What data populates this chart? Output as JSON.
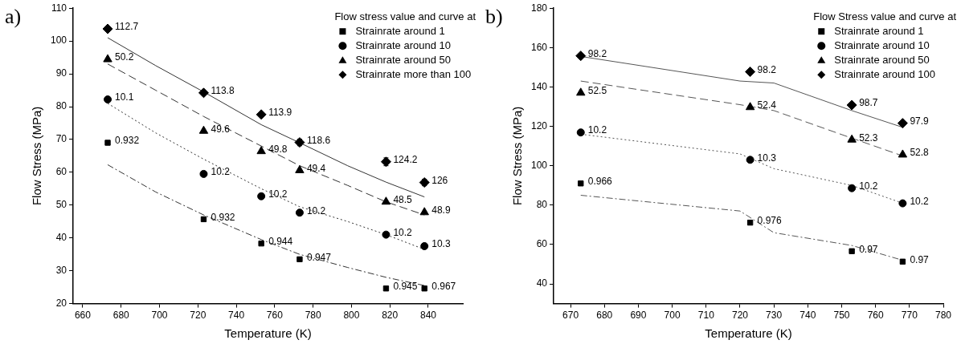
{
  "chart_data": [
    {
      "type": "scatter",
      "xlabel": "Temperature (K)",
      "ylabel": "Flow Stress (MPa)",
      "legend_title": "Flow stress value and curve at",
      "legend": "top right",
      "xlim": [
        655,
        858
      ],
      "xticks": [
        660,
        680,
        700,
        720,
        740,
        760,
        780,
        800,
        820,
        840
      ],
      "ylim": [
        20,
        110
      ],
      "yticks": [
        20,
        30,
        40,
        50,
        60,
        70,
        80,
        90,
        100,
        110
      ],
      "x": [
        673,
        723,
        753,
        773,
        818,
        838
      ],
      "annotations": [
        "a)",
        {
          "text": "0.932",
          "x": 673,
          "y": 69.0
        },
        {
          "text": "0.932",
          "x": 723,
          "y": 45.7
        },
        {
          "text": "0.944",
          "x": 753,
          "y": 38.3
        },
        {
          "text": "0.947",
          "x": 773,
          "y": 33.5
        },
        {
          "text": "0.945",
          "x": 818,
          "y": 24.6
        },
        {
          "text": "0.967",
          "x": 838,
          "y": 24.6
        },
        {
          "text": "10.1",
          "x": 673,
          "y": 82.2
        },
        {
          "text": "10.2",
          "x": 723,
          "y": 59.5
        },
        {
          "text": "10.2",
          "x": 753,
          "y": 52.7
        },
        {
          "text": "10.2",
          "x": 773,
          "y": 47.7
        },
        {
          "text": "10.2",
          "x": 818,
          "y": 41.0
        },
        {
          "text": "10.3",
          "x": 838,
          "y": 37.5
        },
        {
          "text": "50.2",
          "x": 673,
          "y": 94.4
        },
        {
          "text": "49.6",
          "x": 723,
          "y": 72.6
        },
        {
          "text": "49.8",
          "x": 753,
          "y": 66.4
        },
        {
          "text": "49.4",
          "x": 773,
          "y": 60.6
        },
        {
          "text": "48.5",
          "x": 818,
          "y": 51.0
        },
        {
          "text": "48.9",
          "x": 838,
          "y": 47.8
        },
        {
          "text": "112.7",
          "x": 673,
          "y": 103.7
        },
        {
          "text": "113.8",
          "x": 723,
          "y": 84.2
        },
        {
          "text": "113.9",
          "x": 753,
          "y": 77.6
        },
        {
          "text": "118.6",
          "x": 773,
          "y": 69.1
        },
        {
          "text": "124.2",
          "x": 818,
          "y": 63.2
        },
        {
          "text": "126",
          "x": 838,
          "y": 56.9
        }
      ],
      "series": [
        {
          "name": "Strainrate around 1",
          "color": "#000000",
          "marker": "square",
          "values": [
            69.0,
            45.7,
            38.3,
            33.5,
            24.6,
            24.6
          ]
        },
        {
          "name": "Strainrate around 10",
          "color": "#000000",
          "marker": "circle",
          "values": [
            82.2,
            59.5,
            52.7,
            47.7,
            41.0,
            37.5
          ]
        },
        {
          "name": "Strainrate around 50",
          "color": "#000000",
          "marker": "triangle",
          "values": [
            94.4,
            72.6,
            66.4,
            60.6,
            51.0,
            47.8
          ]
        },
        {
          "name": "Strainrate more than 100",
          "color": "#000000",
          "marker": "diamond",
          "values": [
            103.7,
            84.2,
            77.6,
            69.1,
            63.2,
            56.9
          ],
          "errors": [
            null,
            null,
            null,
            1,
            1.2,
            1
          ]
        },
        {
          "type": "line",
          "color": "#333333",
          "marker": "none",
          "line_style": "dashdot",
          "x": [
            673,
            698,
            723,
            753,
            773,
            798,
            818,
            838
          ],
          "values": [
            62.3,
            54,
            47,
            39.5,
            35,
            31,
            28,
            25.5
          ]
        },
        {
          "type": "line",
          "color": "#333333",
          "marker": "none",
          "line_style": "dotted",
          "x": [
            673,
            698,
            723,
            753,
            773,
            798,
            818,
            838
          ],
          "values": [
            81,
            72,
            64,
            55,
            49.5,
            45,
            41,
            36.5
          ]
        },
        {
          "type": "line",
          "color": "#333333",
          "marker": "none",
          "line_style": "dashed",
          "x": [
            673,
            698,
            723,
            753,
            773,
            798,
            818,
            838
          ],
          "values": [
            93,
            85,
            77,
            68,
            62,
            56,
            51,
            47
          ]
        },
        {
          "type": "line",
          "color": "#333333",
          "marker": "none",
          "line_style": "solid",
          "x": [
            673,
            698,
            723,
            753,
            773,
            798,
            818,
            838
          ],
          "values": [
            101,
            92.5,
            84.5,
            74.5,
            69,
            62,
            57,
            52.5
          ]
        }
      ]
    },
    {
      "type": "scatter",
      "xlabel": "Temperature (K)",
      "ylabel": "Flow Stress (MPa)",
      "legend_title": "Flow Stress value and curve at",
      "legend": "top right",
      "xlim": [
        665,
        780
      ],
      "xticks": [
        670,
        680,
        690,
        700,
        710,
        720,
        730,
        740,
        750,
        760,
        770,
        780
      ],
      "ylim": [
        30,
        180
      ],
      "yticks": [
        40,
        60,
        80,
        100,
        120,
        140,
        160,
        180
      ],
      "x": [
        673,
        723,
        753,
        768
      ],
      "annotations": [
        "b)",
        {
          "text": "0.966",
          "x": 673,
          "y": 91
        },
        {
          "text": "0.976",
          "x": 723,
          "y": 71.1
        },
        {
          "text": "0.97",
          "x": 753,
          "y": 56.6
        },
        {
          "text": "0.97",
          "x": 768,
          "y": 51.3
        },
        {
          "text": "10.2",
          "x": 673,
          "y": 116.9
        },
        {
          "text": "10.3",
          "x": 723,
          "y": 103
        },
        {
          "text": "10.2",
          "x": 753,
          "y": 88.6
        },
        {
          "text": "10.2",
          "x": 768,
          "y": 80.9
        },
        {
          "text": "52.5",
          "x": 673,
          "y": 137
        },
        {
          "text": "52.4",
          "x": 723,
          "y": 129.7
        },
        {
          "text": "52.3",
          "x": 753,
          "y": 113.2
        },
        {
          "text": "52.8",
          "x": 768,
          "y": 105.6
        },
        {
          "text": "98.2",
          "x": 673,
          "y": 155.8
        },
        {
          "text": "98.2",
          "x": 723,
          "y": 147.7
        },
        {
          "text": "98.7",
          "x": 753,
          "y": 130.8
        },
        {
          "text": "97.9",
          "x": 768,
          "y": 121.6
        }
      ],
      "series": [
        {
          "name": "Strainrate around 1",
          "color": "#000000",
          "marker": "square",
          "values": [
            91,
            71.1,
            56.6,
            51.3
          ]
        },
        {
          "name": "Strainrate around 10",
          "color": "#000000",
          "marker": "circle",
          "values": [
            116.9,
            103,
            88.6,
            80.9
          ]
        },
        {
          "name": "Strainrate around 50",
          "color": "#000000",
          "marker": "triangle",
          "values": [
            137,
            129.7,
            113.2,
            105.6
          ]
        },
        {
          "name": "Strainrate around 100",
          "color": "#000000",
          "marker": "diamond",
          "values": [
            155.8,
            147.7,
            130.8,
            121.6
          ]
        },
        {
          "type": "line",
          "color": "#555555",
          "marker": "none",
          "line_style": "dashdot",
          "x": [
            673,
            720,
            730,
            753,
            768
          ],
          "values": [
            85,
            77,
            66,
            59.5,
            52
          ]
        },
        {
          "type": "line",
          "color": "#555555",
          "marker": "none",
          "line_style": "dotted",
          "x": [
            673,
            720,
            730,
            753,
            768
          ],
          "values": [
            116,
            106,
            98.5,
            90,
            81
          ]
        },
        {
          "type": "line",
          "color": "#555555",
          "marker": "none",
          "line_style": "dashed",
          "x": [
            673,
            720,
            730,
            753,
            768
          ],
          "values": [
            143,
            131,
            128,
            114,
            105
          ]
        },
        {
          "type": "line",
          "color": "#555555",
          "marker": "none",
          "line_style": "solid",
          "x": [
            673,
            720,
            730,
            753,
            768
          ],
          "values": [
            155.5,
            143,
            142,
            128,
            119.5
          ]
        }
      ]
    }
  ]
}
